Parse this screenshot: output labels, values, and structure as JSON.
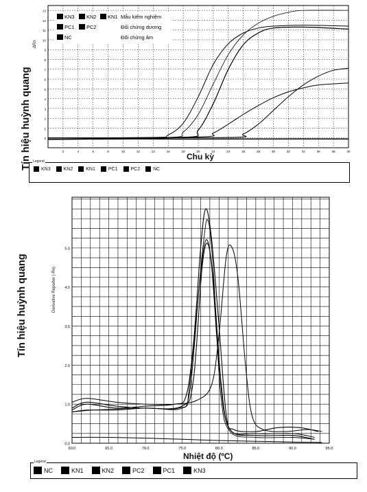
{
  "chart_data": [
    {
      "type": "line",
      "xlabel": "Chu kỳ",
      "ylabel": "Tín hiệu huỳnh quang",
      "ylabel_inner": "ΔRn",
      "xlim": [
        0,
        40
      ],
      "ylim": [
        -1,
        13.5
      ],
      "x_ticks": [
        2,
        4,
        6,
        8,
        10,
        12,
        14,
        16,
        18,
        20,
        22,
        24,
        26,
        28,
        30,
        32,
        34,
        36,
        38,
        40
      ],
      "y_ticks": [
        0,
        1,
        2,
        3,
        4,
        5,
        6,
        7,
        8,
        9,
        10,
        11,
        12,
        13
      ],
      "grid": true,
      "inset_legend": {
        "swatch_labels": [
          "KN3",
          "KN2",
          "KN1",
          "PC1",
          "PC2",
          "NC"
        ],
        "notes": [
          "Mẫu kiểm nghiệm",
          "Đối chứng dương",
          "Đối chứng âm"
        ]
      },
      "legend": {
        "title": "Legend",
        "items": [
          "KN3",
          "KN2",
          "KN1",
          "PC1",
          "PC2",
          "NC"
        ]
      },
      "series": [
        {
          "values": [
            [
              0,
              0
            ],
            [
              14,
              0.05
            ],
            [
              16,
              0.3
            ],
            [
              18,
              1.5
            ],
            [
              20,
              4.2
            ],
            [
              22,
              7.5
            ],
            [
              24,
              9.6
            ],
            [
              26,
              10.7
            ],
            [
              28,
              11.2
            ],
            [
              30,
              11.4
            ],
            [
              34,
              11.5
            ],
            [
              40,
              11.4
            ]
          ]
        },
        {
          "values": [
            [
              0,
              0
            ],
            [
              16,
              0.05
            ],
            [
              18,
              0.6
            ],
            [
              20,
              2.4
            ],
            [
              22,
              5.5
            ],
            [
              24,
              8.5
            ],
            [
              26,
              10.5
            ],
            [
              28,
              11.7
            ],
            [
              30,
              12.4
            ],
            [
              32,
              12.8
            ],
            [
              34,
              13.0
            ],
            [
              40,
              13.0
            ]
          ]
        },
        {
          "values": [
            [
              0,
              0
            ],
            [
              18,
              0.05
            ],
            [
              20,
              0.8
            ],
            [
              22,
              3.5
            ],
            [
              24,
              7.0
            ],
            [
              26,
              9.5
            ],
            [
              28,
              10.7
            ],
            [
              30,
              11.2
            ],
            [
              34,
              11.3
            ],
            [
              40,
              11.1
            ]
          ]
        },
        {
          "values": [
            [
              0,
              0
            ],
            [
              20,
              0.1
            ],
            [
              22,
              0.5
            ],
            [
              24,
              1.4
            ],
            [
              26,
              2.4
            ],
            [
              28,
              3.3
            ],
            [
              30,
              4.1
            ],
            [
              32,
              4.7
            ],
            [
              34,
              5.1
            ],
            [
              36,
              5.4
            ],
            [
              40,
              5.6
            ]
          ]
        },
        {
          "values": [
            [
              0,
              0
            ],
            [
              24,
              0.05
            ],
            [
              26,
              0.4
            ],
            [
              28,
              1.4
            ],
            [
              30,
              2.8
            ],
            [
              32,
              4.2
            ],
            [
              34,
              5.4
            ],
            [
              36,
              6.3
            ],
            [
              38,
              6.9
            ],
            [
              40,
              7.1
            ]
          ]
        },
        {
          "values": [
            [
              0,
              -0.15
            ],
            [
              10,
              -0.1
            ],
            [
              20,
              -0.12
            ],
            [
              30,
              -0.1
            ],
            [
              40,
              -0.1
            ]
          ]
        }
      ]
    },
    {
      "type": "line",
      "xlabel": "Nhiệt độ (ºC)",
      "ylabel": "Tín hiệu huỳnh quang",
      "ylabel_inner": "Derivative Reporter (-Rn)",
      "xlim": [
        60,
        95
      ],
      "ylim": [
        0,
        6.3
      ],
      "x_ticks": [
        60,
        65,
        70,
        75,
        80,
        85,
        90,
        95
      ],
      "x_tick_labels": [
        "60.0",
        "65.0",
        "70.0",
        "75.0",
        "80.0",
        "85.0",
        "90.0",
        "95.0"
      ],
      "y_ticks": [
        0,
        1,
        2,
        3,
        4,
        5
      ],
      "y_tick_labels": [
        "0.0",
        "1.0",
        "2.0",
        "3.0",
        "4.0",
        "5.0"
      ],
      "grid": true,
      "legend": {
        "title": "Legend",
        "items": [
          "NC",
          "KN1",
          "KN2",
          "PC2",
          "PC1",
          "KN3"
        ]
      },
      "series": [
        {
          "values": [
            [
              60,
              0.15
            ],
            [
              65,
              0.15
            ],
            [
              70,
              0.13
            ],
            [
              75,
              0.1
            ],
            [
              80,
              0.07
            ],
            [
              85,
              0.05
            ],
            [
              90,
              0.03
            ],
            [
              94,
              0.02
            ]
          ]
        },
        {
          "values": [
            [
              60,
              0.85
            ],
            [
              62,
              1.0
            ],
            [
              66,
              0.9
            ],
            [
              70,
              0.95
            ],
            [
              74,
              1.0
            ],
            [
              75.5,
              1.2
            ],
            [
              76.5,
              2.5
            ],
            [
              77.5,
              5.0
            ],
            [
              78.2,
              6.0
            ],
            [
              79,
              5.2
            ],
            [
              80,
              3.0
            ],
            [
              81,
              0.7
            ],
            [
              82,
              0.35
            ],
            [
              85,
              0.3
            ],
            [
              88,
              0.4
            ],
            [
              91,
              0.4
            ],
            [
              93.5,
              0.3
            ]
          ]
        },
        {
          "values": [
            [
              60,
              0.9
            ],
            [
              62,
              1.05
            ],
            [
              66,
              0.95
            ],
            [
              70,
              0.9
            ],
            [
              75,
              0.95
            ],
            [
              76.5,
              1.6
            ],
            [
              77.7,
              4.5
            ],
            [
              78.5,
              5.1
            ],
            [
              79.3,
              4.0
            ],
            [
              80.3,
              1.5
            ],
            [
              81.5,
              0.35
            ],
            [
              85,
              0.2
            ],
            [
              90,
              0.2
            ],
            [
              93,
              0.1
            ]
          ]
        },
        {
          "values": [
            [
              60,
              0.8
            ],
            [
              62,
              0.85
            ],
            [
              66,
              0.85
            ],
            [
              70,
              0.9
            ],
            [
              74.5,
              0.9
            ],
            [
              76,
              1.3
            ],
            [
              77.3,
              4.0
            ],
            [
              78.2,
              5.2
            ],
            [
              79,
              4.5
            ],
            [
              80,
              2.0
            ],
            [
              81.3,
              0.4
            ],
            [
              85,
              0.25
            ],
            [
              90,
              0.25
            ],
            [
              93,
              0.15
            ]
          ]
        },
        {
          "values": [
            [
              60,
              0.8
            ],
            [
              63,
              0.85
            ],
            [
              70,
              0.9
            ],
            [
              75,
              0.9
            ],
            [
              76,
              1.5
            ],
            [
              77.8,
              5.0
            ],
            [
              78.5,
              5.7
            ],
            [
              79.2,
              4.5
            ],
            [
              80.2,
              1.3
            ],
            [
              81.5,
              0.3
            ],
            [
              85,
              0.15
            ],
            [
              90,
              0.15
            ],
            [
              93,
              0.1
            ]
          ]
        },
        {
          "values": [
            [
              60,
              1.05
            ],
            [
              62,
              1.15
            ],
            [
              66,
              1.05
            ],
            [
              70,
              1.0
            ],
            [
              74,
              1.0
            ],
            [
              77,
              1.1
            ],
            [
              79,
              1.5
            ],
            [
              80,
              2.8
            ],
            [
              81,
              4.8
            ],
            [
              81.8,
              5.0
            ],
            [
              82.6,
              4.2
            ],
            [
              83.6,
              2.0
            ],
            [
              84.5,
              0.7
            ],
            [
              86,
              0.35
            ],
            [
              89,
              0.3
            ],
            [
              92,
              0.35
            ],
            [
              94,
              0.3
            ]
          ]
        }
      ]
    }
  ]
}
